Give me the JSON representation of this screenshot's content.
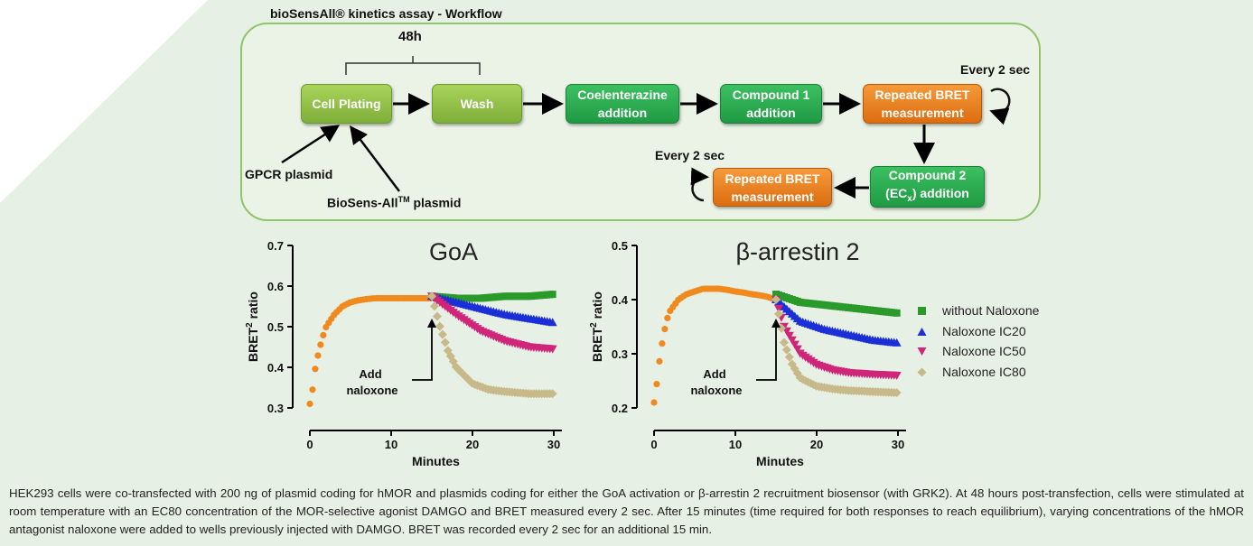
{
  "workflow": {
    "title": "bioSensAll® kinetics assay - Workflow",
    "duration_label": "48h",
    "steps": {
      "cell_plating": "Cell Plating",
      "wash": "Wash",
      "coelenterazine": "Coelenterazine addition",
      "compound1": "Compound 1 addition",
      "repeated_bret_1": "Repeated BRET measurement",
      "compound2_line1": "Compound 2",
      "compound2_line2_pre": "(EC",
      "compound2_sub": "x",
      "compound2_line2_post": ") addition",
      "repeated_bret_2": "Repeated BRET measurement"
    },
    "every_label_1": "Every 2 sec",
    "every_label_2": "Every 2 sec",
    "inputs": {
      "gpcr": "GPCR plasmid",
      "biosens_pre": "BioSens-All",
      "biosens_sup": "TM",
      "biosens_post": " plasmid"
    },
    "colors": {
      "lime": "#8fbf45",
      "green": "#2aad52",
      "orange": "#e8801f",
      "border": "#8fc46a"
    }
  },
  "charts": {
    "ylabel_main": "BRET",
    "ylabel_sup": "2",
    "ylabel_rest": " ratio",
    "xlabel": "Minutes",
    "annotation_line1": "Add",
    "annotation_line2": "naloxone"
  },
  "legend": [
    {
      "name": "without Naloxone",
      "color": "#2a9a2a",
      "marker": "square"
    },
    {
      "name": "Naloxone IC20",
      "color": "#1a2fd6",
      "marker": "triangle-up"
    },
    {
      "name": "Naloxone IC50",
      "color": "#d0267a",
      "marker": "triangle-down"
    },
    {
      "name": "Naloxone IC80",
      "color": "#c8b98a",
      "marker": "diamond"
    }
  ],
  "chart_data": [
    {
      "type": "scatter",
      "title": "GoA",
      "xlabel": "Minutes",
      "ylabel": "BRET2 ratio",
      "xlim": [
        0,
        31
      ],
      "ylim": [
        0.3,
        0.7
      ],
      "xticks": [
        0,
        10,
        20,
        30
      ],
      "yticks": [
        0.3,
        0.4,
        0.5,
        0.6,
        0.7
      ],
      "baseline": {
        "color": "#f08a1e",
        "x": [
          0,
          0.3,
          0.6,
          1,
          1.5,
          2,
          3,
          4,
          5,
          6,
          7,
          8,
          9,
          10,
          11,
          12,
          13,
          14,
          15
        ],
        "y": [
          0.31,
          0.34,
          0.39,
          0.43,
          0.47,
          0.5,
          0.53,
          0.55,
          0.56,
          0.565,
          0.568,
          0.57,
          0.57,
          0.57,
          0.57,
          0.57,
          0.57,
          0.57,
          0.57
        ]
      },
      "series": [
        {
          "name": "without Naloxone",
          "x": [
            15,
            18,
            21,
            24,
            27,
            30
          ],
          "y": [
            0.575,
            0.57,
            0.57,
            0.575,
            0.575,
            0.58
          ]
        },
        {
          "name": "Naloxone IC20",
          "x": [
            15,
            18,
            21,
            24,
            27,
            30
          ],
          "y": [
            0.575,
            0.56,
            0.545,
            0.53,
            0.52,
            0.51
          ]
        },
        {
          "name": "Naloxone IC50",
          "x": [
            15,
            18,
            21,
            24,
            27,
            30
          ],
          "y": [
            0.575,
            0.53,
            0.49,
            0.465,
            0.45,
            0.445
          ]
        },
        {
          "name": "Naloxone IC80",
          "x": [
            15,
            16,
            17,
            18,
            20,
            22,
            24,
            27,
            30
          ],
          "y": [
            0.575,
            0.5,
            0.44,
            0.4,
            0.36,
            0.345,
            0.34,
            0.335,
            0.335
          ]
        }
      ]
    },
    {
      "type": "scatter",
      "title": "β-arrestin 2",
      "xlabel": "Minutes",
      "ylabel": "BRET2 ratio",
      "xlim": [
        0,
        31
      ],
      "ylim": [
        0.2,
        0.5
      ],
      "xticks": [
        0,
        10,
        20,
        30
      ],
      "yticks": [
        0.2,
        0.3,
        0.4,
        0.5
      ],
      "baseline": {
        "color": "#f08a1e",
        "x": [
          0,
          0.3,
          0.6,
          1,
          1.5,
          2,
          3,
          4,
          5,
          6,
          7,
          8,
          9,
          10,
          11,
          12,
          13,
          14,
          15
        ],
        "y": [
          0.21,
          0.24,
          0.28,
          0.32,
          0.36,
          0.38,
          0.4,
          0.41,
          0.415,
          0.42,
          0.42,
          0.42,
          0.418,
          0.415,
          0.413,
          0.41,
          0.408,
          0.405,
          0.4
        ]
      },
      "series": [
        {
          "name": "without Naloxone",
          "x": [
            15,
            18,
            21,
            24,
            27,
            30
          ],
          "y": [
            0.41,
            0.395,
            0.39,
            0.385,
            0.38,
            0.375
          ]
        },
        {
          "name": "Naloxone IC20",
          "x": [
            15,
            18,
            21,
            24,
            27,
            30
          ],
          "y": [
            0.4,
            0.36,
            0.345,
            0.335,
            0.325,
            0.32
          ]
        },
        {
          "name": "Naloxone IC50",
          "x": [
            15,
            16,
            18,
            20,
            22,
            24,
            27,
            30
          ],
          "y": [
            0.4,
            0.35,
            0.3,
            0.28,
            0.27,
            0.265,
            0.262,
            0.26
          ]
        },
        {
          "name": "Naloxone IC80",
          "x": [
            15,
            16,
            17,
            18,
            20,
            22,
            24,
            27,
            30
          ],
          "y": [
            0.4,
            0.32,
            0.28,
            0.255,
            0.24,
            0.235,
            0.232,
            0.23,
            0.228
          ]
        }
      ]
    }
  ],
  "caption": "HEK293 cells were co-transfected with 200 ng of plasmid coding for hMOR and plasmids coding for either the GoA activation or β-arrestin 2 recruitment biosensor (with GRK2). At 48 hours post-transfection, cells were stimulated at room temperature with an EC80 concentration of the MOR-selective agonist DAMGO and BRET measured every 2 sec. After 15 minutes (time required for both responses to reach equilibrium), varying concentrations of the hMOR antagonist naloxone were added to wells previously injected with DAMGO. BRET was recorded every 2 sec for an additional 15 min."
}
